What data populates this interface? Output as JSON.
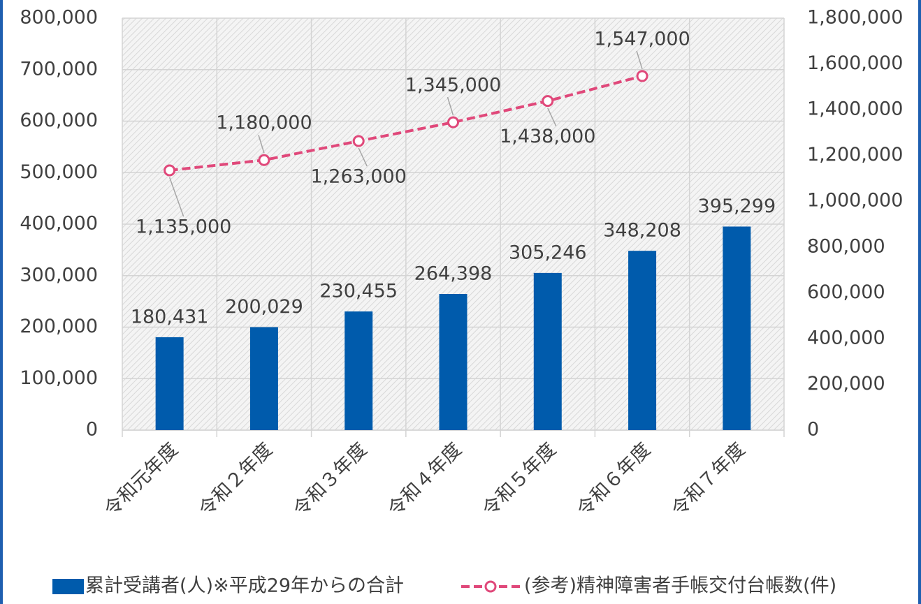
{
  "chart_data": {
    "type": "bar_line",
    "categories": [
      "令和元年度",
      "令和２年度",
      "令和３年度",
      "令和４年度",
      "令和５年度",
      "令和６年度",
      "令和７年度"
    ],
    "series": [
      {
        "name": "累計受講者(人)※平成29年からの合計",
        "type": "bar",
        "color": "#005bac",
        "values": [
          180431,
          200029,
          230455,
          264398,
          305246,
          348208,
          395299
        ],
        "value_labels": [
          "180,431",
          "200,029",
          "230,455",
          "264,398",
          "305,246",
          "348,208",
          "395,299"
        ]
      },
      {
        "name": "(参考)精神障害者手帳交付台帳数(件)",
        "type": "line",
        "axis": "y2",
        "color": "#e0487a",
        "dashed": true,
        "values": [
          1135000,
          1180000,
          1263000,
          1345000,
          1438000,
          1547000,
          null
        ],
        "value_labels": [
          "1,135,000",
          "1,180,000",
          "1,263,000",
          "1,345,000",
          "1,438,000",
          "1,547,000",
          null
        ]
      }
    ],
    "ylim": [
      0,
      800000
    ],
    "yticks": [
      0,
      {
        "value": 100000,
        "label": "100,000"
      },
      {
        "value": 200000,
        "label": "200,000"
      },
      {
        "value": 300000,
        "label": "300,000"
      },
      {
        "value": 400000,
        "label": "400,000"
      },
      {
        "value": 500000,
        "label": "500,000"
      },
      {
        "value": 600000,
        "label": "600,000"
      },
      {
        "value": 700000,
        "label": "700,000"
      },
      {
        "value": 800000,
        "label": "800,000"
      }
    ],
    "y2lim": [
      0,
      1800000
    ],
    "y2ticks": [
      0,
      {
        "value": 200000,
        "label": "200,000"
      },
      {
        "value": 400000,
        "label": "400,000"
      },
      {
        "value": 600000,
        "label": "600,000"
      },
      {
        "value": 800000,
        "label": "800,000"
      },
      {
        "value": 1000000,
        "label": "1,000,000"
      },
      {
        "value": 1200000,
        "label": "1,200,000"
      },
      {
        "value": 1400000,
        "label": "1,400,000"
      },
      {
        "value": 1600000,
        "label": "1,600,000"
      },
      {
        "value": 1800000,
        "label": "1,800,000"
      }
    ],
    "grid": true,
    "legend": "bottom"
  }
}
